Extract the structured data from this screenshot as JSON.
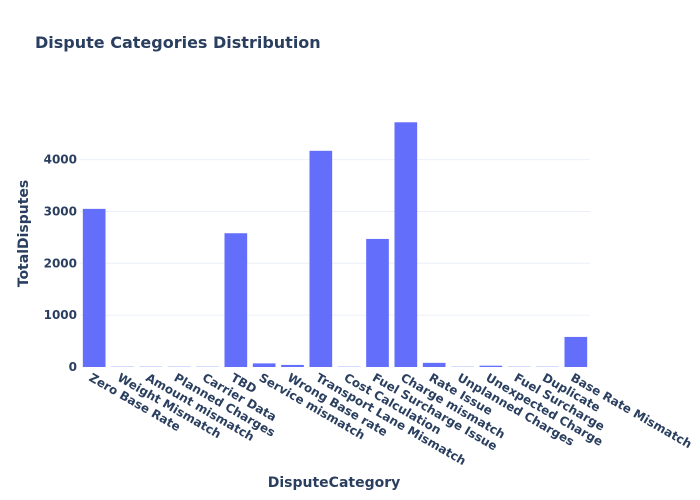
{
  "chart_data": {
    "type": "bar",
    "title": "Dispute Categories Distribution",
    "xlabel": "DisputeCategory",
    "ylabel": "TotalDisputes",
    "categories": [
      "Zero Base Rate",
      "Weight Mismatch",
      "Amount mismatch",
      "Planned Charges",
      "Carrier Data",
      "TBD",
      "Service mismatch",
      "Wrong Base rate",
      "Transport Lane Mismatch",
      "Cost Calculation",
      "Fuel Surcharge Issue",
      "Charge mismatch",
      "Rate Issue",
      "Unplanned Charges",
      "Unexpected Charge",
      "Fuel Surcharge",
      "Duplicate",
      "Base Rate Mismatch"
    ],
    "values": [
      3050,
      5,
      5,
      5,
      5,
      2580,
      70,
      40,
      4170,
      5,
      2470,
      4720,
      80,
      5,
      25,
      5,
      5,
      580
    ],
    "ylim": [
      0,
      5150
    ],
    "yticks": [
      0,
      1000,
      2000,
      3000,
      4000
    ],
    "grid": true,
    "legend": "none",
    "colors": {
      "bar": "#636efa",
      "grid": "#ebf0f8",
      "text": "#2a3f5f"
    }
  }
}
